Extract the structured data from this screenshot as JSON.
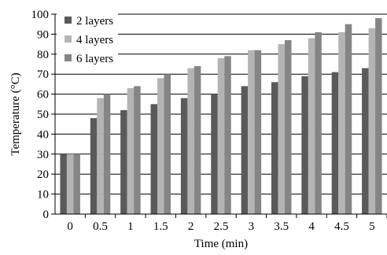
{
  "chart_data": {
    "type": "bar",
    "categories": [
      "0",
      "0.5",
      "1",
      "1.5",
      "2",
      "2.5",
      "3",
      "3.5",
      "4",
      "4.5",
      "5"
    ],
    "series": [
      {
        "name": "2 layers",
        "color": "#5a5a5a",
        "values": [
          30,
          48,
          52,
          55,
          58,
          60,
          64,
          66,
          69,
          71,
          73
        ]
      },
      {
        "name": "4 layers",
        "color": "#b4b4b4",
        "values": [
          30,
          58,
          63,
          68,
          73,
          78,
          82,
          85,
          88,
          91,
          93
        ]
      },
      {
        "name": "6 layers",
        "color": "#858585",
        "values": [
          30,
          60,
          64,
          70,
          74,
          79,
          82,
          87,
          91,
          95,
          98
        ]
      }
    ],
    "xlabel": "Time (min)",
    "ylabel": "Temperature (°C)",
    "ylim": [
      0,
      100
    ],
    "yticks": [
      0,
      10,
      20,
      30,
      40,
      50,
      60,
      70,
      80,
      90,
      100
    ],
    "grid": "horizontal",
    "legend_position": "top-left"
  }
}
